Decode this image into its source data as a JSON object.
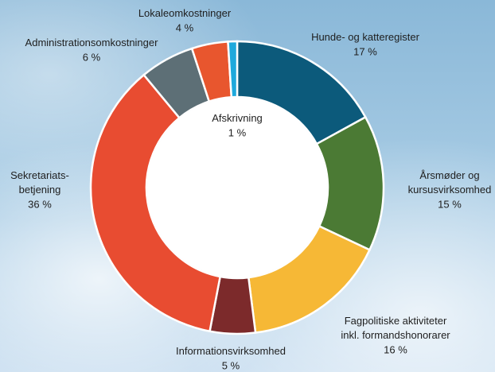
{
  "chart_data": {
    "type": "donut",
    "categories": [
      "Hunde- og katteregister",
      "Årsmøder og\nkursusvirksomhed",
      "Fagpolitiske aktiviteter\ninkl. formandshonorarer",
      "Informationsvirksomhed",
      "Sekretariats-\nbetjening",
      "Administrationsomkostninger",
      "Lokaleomkostninger",
      "Afskrivning"
    ],
    "values": [
      17,
      15,
      16,
      5,
      36,
      6,
      4,
      1
    ],
    "value_labels": [
      "17 %",
      "15 %",
      "16 %",
      "5 %",
      "36 %",
      "6 %",
      "4 %",
      "1 %"
    ],
    "colors": [
      "#0c5a7b",
      "#4b7a34",
      "#f6b836",
      "#7c2a2b",
      "#e84c31",
      "#5d6f76",
      "#e8562e",
      "#1ea9dc"
    ]
  }
}
